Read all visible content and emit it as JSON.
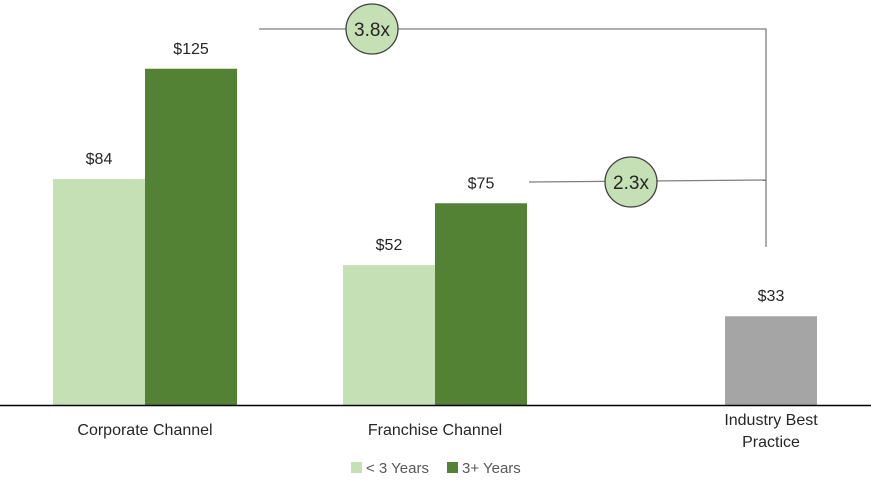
{
  "chart_data": {
    "type": "bar",
    "categories": [
      "Corporate Channel",
      "Franchise Channel",
      "Industry Best Practice"
    ],
    "category_lines": [
      [
        "Corporate Channel"
      ],
      [
        "Franchise Channel"
      ],
      [
        "Industry Best",
        "Practice"
      ]
    ],
    "series": [
      {
        "name": "< 3 Years",
        "color": "#c5e0b4",
        "values": [
          84,
          52,
          null
        ]
      },
      {
        "name": "3+ Years",
        "color": "#548235",
        "values": [
          125,
          75,
          null
        ]
      },
      {
        "name": "Industry Best Practice",
        "color": "#a5a5a5",
        "values": [
          null,
          null,
          33
        ]
      }
    ],
    "value_labels": {
      "series_0": [
        "$84",
        "$52",
        ""
      ],
      "series_1": [
        "$125",
        "$75",
        ""
      ],
      "series_2": [
        "",
        "",
        "$33"
      ]
    },
    "ylim": [
      0,
      140
    ],
    "annotations": [
      {
        "text": "3.8x",
        "from": "Corporate Channel 3+ Years",
        "to": "Industry Best Practice"
      },
      {
        "text": "2.3x",
        "from": "Franchise Channel 3+ Years",
        "to": "Industry Best Practice"
      }
    ],
    "legend": {
      "placement": "bottom",
      "entries": [
        "< 3 Years",
        "3+ Years"
      ]
    },
    "title": "",
    "xlabel": "",
    "ylabel": ""
  }
}
